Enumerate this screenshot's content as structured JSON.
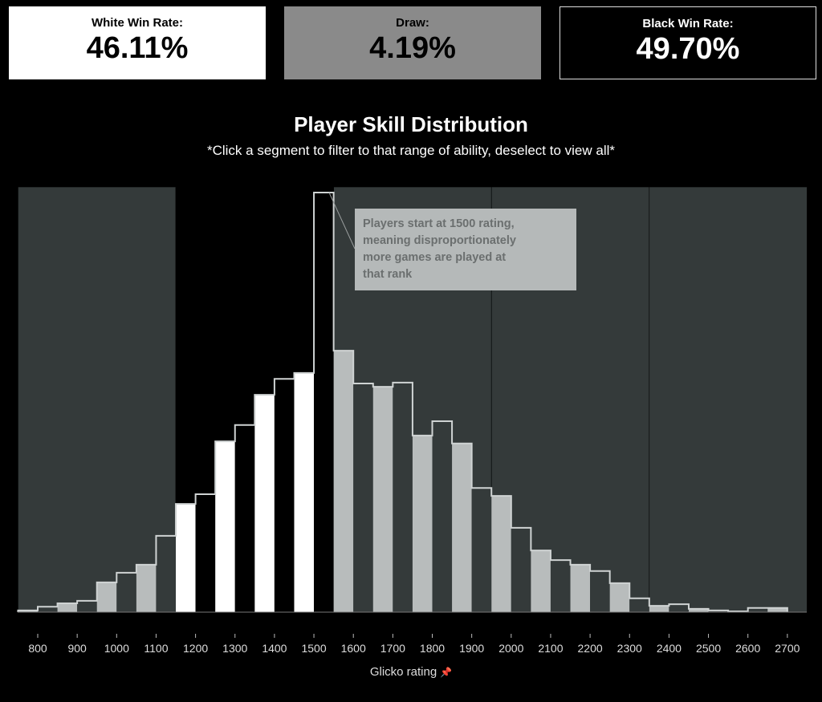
{
  "kpis": {
    "white": {
      "label": "White Win Rate:",
      "value": "46.11%"
    },
    "draw": {
      "label": "Draw:",
      "value": "4.19%"
    },
    "black": {
      "label": "Black Win Rate:",
      "value": "49.70%"
    }
  },
  "chart_data": {
    "type": "bar",
    "title": "Player Skill Distribution",
    "subtitle": "*Click a segment to filter to that range of ability, deselect to view all*",
    "xlabel": "Glicko rating",
    "ylabel": "",
    "bin_width": 50,
    "bins": [
      750,
      800,
      850,
      900,
      950,
      1000,
      1050,
      1100,
      1150,
      1200,
      1250,
      1300,
      1350,
      1400,
      1450,
      1500,
      1550,
      1600,
      1650,
      1700,
      1750,
      1800,
      1850,
      1900,
      1950,
      2000,
      2050,
      2100,
      2150,
      2200,
      2250,
      2300,
      2350,
      2400,
      2450,
      2500,
      2550,
      2600,
      2650
    ],
    "values": [
      0.4,
      1.3,
      2.1,
      2.7,
      7.1,
      9.4,
      11.3,
      18.2,
      25.8,
      28.1,
      40.7,
      44.6,
      51.8,
      55.6,
      57.0,
      100,
      62.3,
      54.5,
      53.7,
      54.7,
      42.1,
      45.5,
      40.2,
      29.6,
      27.7,
      20.1,
      14.7,
      12.4,
      11.3,
      9.8,
      6.9,
      3.3,
      1.5,
      1.9,
      0.8,
      0.4,
      0.2,
      1.0,
      1.0
    ],
    "value_units": "relative frequency (peak = 100); no y-axis shown",
    "ylim": [
      0,
      100
    ],
    "xticks": [
      "800",
      "900",
      "1000",
      "1100",
      "1200",
      "1300",
      "1400",
      "1500",
      "1600",
      "1700",
      "1800",
      "1900",
      "2000",
      "2100",
      "2200",
      "2300",
      "2400",
      "2500",
      "2600",
      "2700"
    ],
    "bands": [
      {
        "range": [
          750,
          1150
        ],
        "selected": false
      },
      {
        "range": [
          1150,
          1550
        ],
        "selected": true
      },
      {
        "range": [
          1550,
          1950
        ],
        "selected": false
      },
      {
        "range": [
          1950,
          2350
        ],
        "selected": false
      },
      {
        "range": [
          2350,
          2750
        ],
        "selected": false
      }
    ],
    "annotation": {
      "lines": [
        "Players start at 1500 rating,",
        "meaning disproportionately",
        "more games are played at",
        "that rank"
      ],
      "points_to": 1500
    },
    "colors": {
      "band_unselected": "#343a3a",
      "band_selected": "#000000",
      "bar_light": "#b8bcbc",
      "bar_white": "#ffffff",
      "outline": "#cfd3d3",
      "annotation_bg": "#b5b9b9"
    },
    "grid": false
  }
}
